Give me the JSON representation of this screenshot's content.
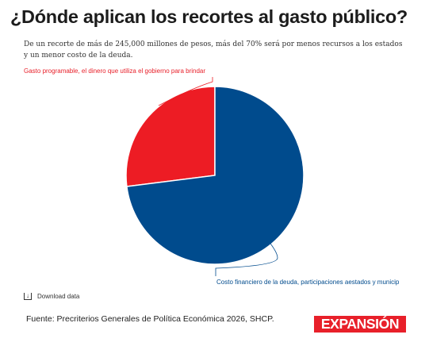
{
  "header": {
    "title": "¿Dónde aplican los recortes al gasto público?",
    "subtitle": "De un recorte de más de 245,000 millones de pesos, más del 70% será por menos recursos a los estados y un menor costo de la deuda."
  },
  "chart_data": {
    "type": "pie",
    "slices": [
      {
        "label": "Gasto programable, el dinero que utiliza el gobierno para brindar",
        "value": 27,
        "color": "#ed1c24"
      },
      {
        "label": "Costo financiero de la deuda, participaciones aestados y municip",
        "value": 73,
        "color": "#004b8d"
      }
    ]
  },
  "footer": {
    "download_label": "Download data",
    "download_icon": "download-icon",
    "source": "Fuente: Precriterios Generales de Política Económica 2026, SHCP.",
    "logo_text": "EXPANSIÓN",
    "logo_color": "#e8202a"
  }
}
